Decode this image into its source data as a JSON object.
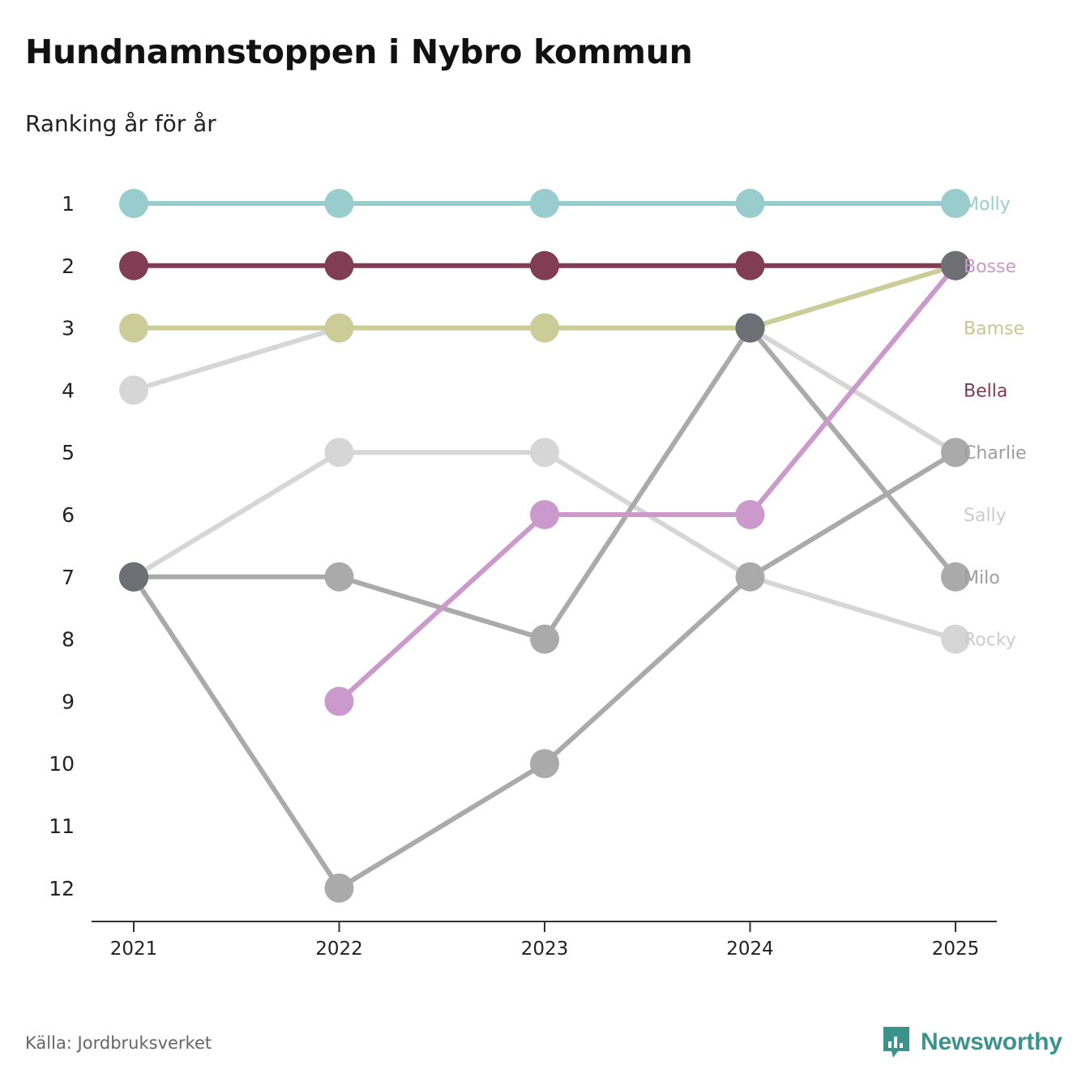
{
  "title": "Hundnamnstoppen i Nybro kommun",
  "subtitle": "Ranking år för år",
  "source": "Källa: Jordbruksverket",
  "brand": {
    "name": "Newsworthy",
    "icon": "newsworthy-logo-icon",
    "color": "#3b938c"
  },
  "chart_data": {
    "type": "line",
    "subtype": "bump",
    "x": [
      "2021",
      "2022",
      "2023",
      "2024",
      "2025"
    ],
    "y_ticks": [
      "1",
      "2",
      "3",
      "4",
      "5",
      "6",
      "7",
      "8",
      "9",
      "10",
      "11",
      "12"
    ],
    "ylim": [
      1,
      12
    ],
    "y_inverted": true,
    "grid": false,
    "series": [
      {
        "name": "Molly",
        "color": "#99cccc",
        "values": [
          1,
          1,
          1,
          1,
          1
        ]
      },
      {
        "name": "Bosse",
        "color": "#cc99cc",
        "label_color": "#c79ac9",
        "values": [
          null,
          9,
          6,
          6,
          2
        ]
      },
      {
        "name": "Bamse",
        "color": "#cccc99",
        "label_color": "#c6c68f",
        "values": [
          3,
          3,
          3,
          3,
          2
        ]
      },
      {
        "name": "Bella",
        "color": "#803d53",
        "label_color": "#7a3a52",
        "values": [
          2,
          2,
          2,
          2,
          2
        ]
      },
      {
        "name": "Charlie",
        "color": "#aaaaaa",
        "label_color": "#9d9d9d",
        "values": [
          7,
          12,
          10,
          7,
          5
        ]
      },
      {
        "name": "Sally",
        "color": "#d6d6d6",
        "label_color": "#cccccc",
        "values": [
          4,
          3,
          3,
          3,
          5
        ]
      },
      {
        "name": "Milo",
        "color": "#aaaaaa",
        "label_color": "#9d9d9d",
        "values": [
          7,
          7,
          8,
          3,
          7
        ]
      },
      {
        "name": "Rocky",
        "color": "#d6d6d6",
        "label_color": "#cccccc",
        "values": [
          7,
          5,
          5,
          7,
          8
        ]
      }
    ],
    "overlap_marker_color": "#6e6e75",
    "axis_color": "#333333"
  }
}
